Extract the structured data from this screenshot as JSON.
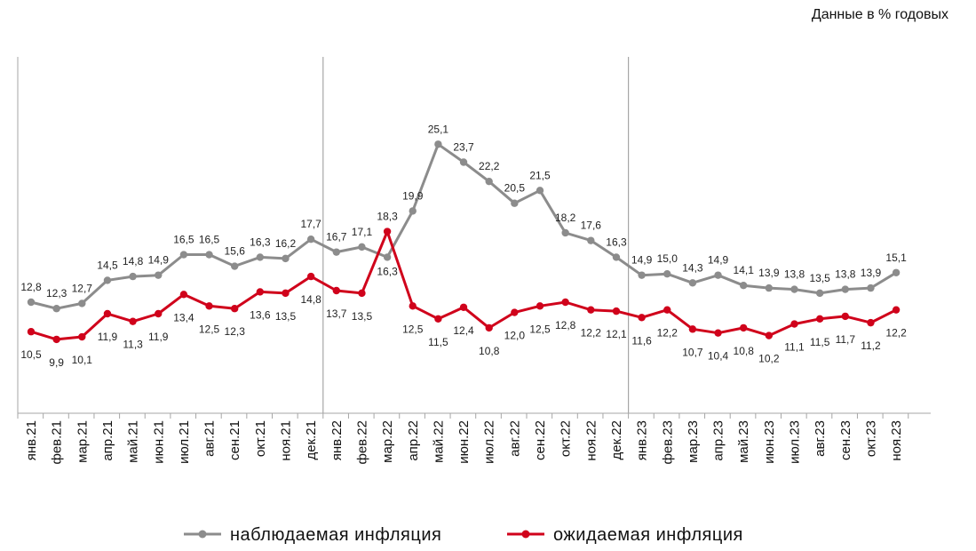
{
  "chart_data": {
    "type": "line",
    "unit_label": "Данные в % годовых",
    "categories": [
      "янв.21",
      "фев.21",
      "мар.21",
      "апр.21",
      "май.21",
      "июн.21",
      "июл.21",
      "авг.21",
      "сен.21",
      "окт.21",
      "ноя.21",
      "дек.21",
      "янв.22",
      "фев.22",
      "мар.22",
      "апр.22",
      "май.22",
      "июн.22",
      "июл.22",
      "авг.22",
      "сен.22",
      "окт.22",
      "ноя.22",
      "дек.22",
      "янв.23",
      "фев.23",
      "мар.23",
      "апр.23",
      "май.23",
      "июн.23",
      "июл.23",
      "авг.23",
      "сен.23",
      "окт.23",
      "ноя.23"
    ],
    "series": [
      {
        "name": "наблюдаемая инфляция",
        "color": "#8c8c8c",
        "values": [
          12.8,
          12.3,
          12.7,
          14.5,
          14.8,
          14.9,
          16.5,
          16.5,
          15.6,
          16.3,
          16.2,
          17.7,
          16.7,
          17.1,
          16.3,
          19.9,
          25.1,
          23.7,
          22.2,
          20.5,
          21.5,
          18.2,
          17.6,
          16.3,
          14.9,
          15.0,
          14.3,
          14.9,
          14.1,
          13.9,
          13.8,
          13.5,
          13.8,
          13.9,
          15.1
        ],
        "labels": [
          "12,8",
          "12,3",
          "12,7",
          "14,5",
          "14,8",
          "14,9",
          "16,5",
          "16,5",
          "15,6",
          "16,3",
          "16,2",
          "17,7",
          "16,7",
          "17,1",
          "16,3",
          "19,9",
          "25,1",
          "23,7",
          "22,2",
          "20,5",
          "21,5",
          "18,2",
          "17,6",
          "16,3",
          "14,9",
          "15,0",
          "14,3",
          "14,9",
          "14,1",
          "13,9",
          "13,8",
          "13,5",
          "13,8",
          "13,9",
          "15,1"
        ]
      },
      {
        "name": "ожидаемая инфляция",
        "color": "#d0021b",
        "values": [
          10.5,
          9.9,
          10.1,
          11.9,
          11.3,
          11.9,
          13.4,
          12.5,
          12.3,
          13.6,
          13.5,
          14.8,
          13.7,
          13.5,
          18.3,
          12.5,
          11.5,
          12.4,
          10.8,
          12.0,
          12.5,
          12.8,
          12.2,
          12.1,
          11.6,
          12.2,
          10.7,
          10.4,
          10.8,
          10.2,
          11.1,
          11.5,
          11.7,
          11.2,
          12.2
        ],
        "labels": [
          "10,5",
          "9,9",
          "10,1",
          "11,9",
          "11,3",
          "11,9",
          "13,4",
          "12,5",
          "12,3",
          "13,6",
          "13,5",
          "14,8",
          "13,7",
          "13,5",
          "18,3",
          "12,5",
          "11,5",
          "12,4",
          "10,8",
          "12,0",
          "12,5",
          "12,8",
          "12,2",
          "12,1",
          "11,6",
          "12,2",
          "10,7",
          "10,4",
          "10,8",
          "10,2",
          "11,1",
          "11,5",
          "11,7",
          "11,2",
          "12,2"
        ]
      }
    ],
    "year_dividers_after": [
      "дек.21",
      "дек.22"
    ],
    "ylim": [
      4.5,
      27
    ],
    "grid": false,
    "legend_position": "bottom"
  }
}
